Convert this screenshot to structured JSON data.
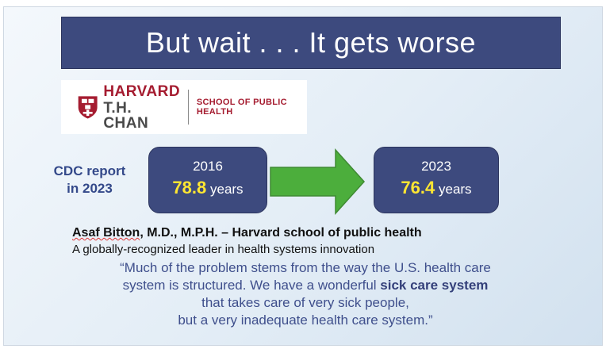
{
  "title": "But wait . . . It gets worse",
  "logo": {
    "name_line1": "HARVARD",
    "name_line2": "T.H. CHAN",
    "school": "SCHOOL OF PUBLIC HEALTH"
  },
  "cdc_label_line1": "CDC report",
  "cdc_label_line2": "in 2023",
  "before": {
    "year": "2016",
    "value": "78.8",
    "unit": "years"
  },
  "after": {
    "year": "2023",
    "value": "76.4",
    "unit": "years"
  },
  "speaker": {
    "name": "Asaf Bitton",
    "credentials": ", M.D., M.P.H. – Harvard school of public health",
    "description": "A globally-recognized leader in health systems innovation"
  },
  "quote": {
    "line1": "“Much of the problem stems from the way the U.S. health care",
    "line2_pre": "system is structured. We have a wonderful ",
    "line2_bold": "sick care system",
    "line3": "that takes care of very sick people,",
    "line4": "but a very inadequate health care system.”"
  },
  "colors": {
    "title_bg": "#3d4a7e",
    "arrow": "#4cae3c",
    "highlight": "#ffe632",
    "harvard_crimson": "#a51c30"
  },
  "icons": {
    "shield": "harvard-shield-icon",
    "arrow": "right-arrow-icon"
  }
}
